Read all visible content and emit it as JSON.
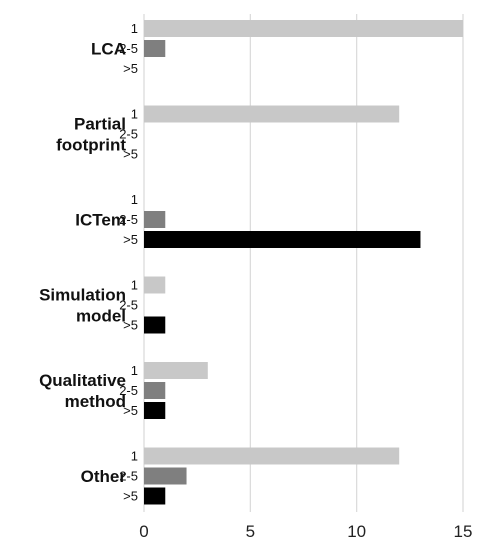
{
  "chart_data": {
    "type": "bar",
    "orientation": "horizontal",
    "title": "",
    "xlabel": "",
    "ylabel": "",
    "xlim": [
      0,
      15
    ],
    "xticks": [
      0,
      5,
      10,
      15
    ],
    "grid": true,
    "legend": "none",
    "subcategories": [
      "1",
      "2-5",
      ">5"
    ],
    "series_colors": {
      "1": "#c8c8c8",
      "2-5": "#7f7f7f",
      ">5": "#000000"
    },
    "groups": [
      {
        "name": "LCA",
        "values": {
          "1": 15,
          "2-5": 1,
          ">5": 0
        }
      },
      {
        "name": "Partial\nfootprint",
        "values": {
          "1": 12,
          "2-5": 0,
          ">5": 0
        }
      },
      {
        "name": "ICTem",
        "values": {
          "1": 0,
          "2-5": 1,
          ">5": 13
        }
      },
      {
        "name": "Simulation\nmodel",
        "values": {
          "1": 1,
          "2-5": 0,
          ">5": 1
        }
      },
      {
        "name": "Qualitative\nmethod",
        "values": {
          "1": 3,
          "2-5": 1,
          ">5": 1
        }
      },
      {
        "name": "Other",
        "values": {
          "1": 12,
          "2-5": 2,
          ">5": 1
        }
      }
    ]
  }
}
